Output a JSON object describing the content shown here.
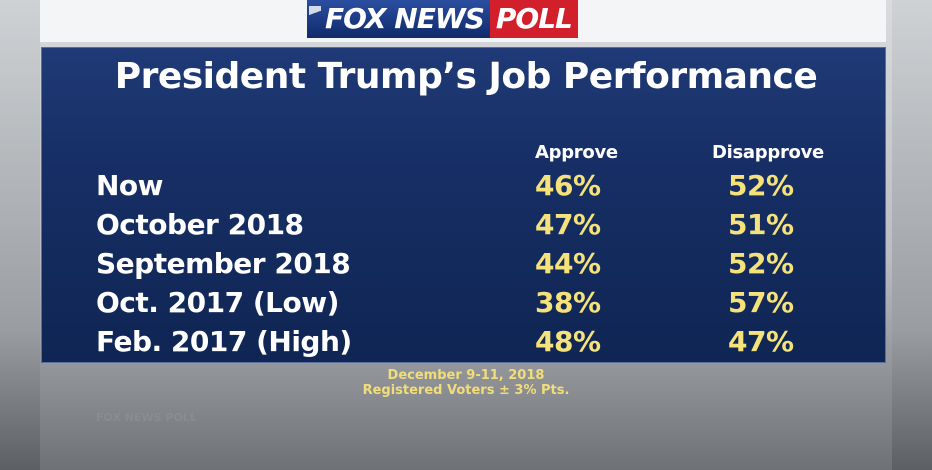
{
  "header": {
    "logo_fox": "FOX NEWS",
    "logo_poll": "POLL"
  },
  "chart_data": {
    "type": "table",
    "title": "President Trump’s Job Performance",
    "columns": [
      "Approve",
      "Disapprove"
    ],
    "rows": [
      {
        "label": "Now",
        "approve": "46%",
        "disapprove": "52%"
      },
      {
        "label": "October 2018",
        "approve": "47%",
        "disapprove": "51%"
      },
      {
        "label": "September 2018",
        "approve": "44%",
        "disapprove": "52%"
      },
      {
        "label": "Oct. 2017 (Low)",
        "approve": "38%",
        "disapprove": "57%"
      },
      {
        "label": "Feb. 2017 (High)",
        "approve": "48%",
        "disapprove": "47%"
      }
    ],
    "footnotes": [
      "December 9-11, 2018",
      "Registered Voters ± 3% Pts."
    ]
  },
  "watermark": "FOX NEWS POLL",
  "colors": {
    "board": "#172f66",
    "value_text": "#f6e27a",
    "poll_red": "#d11f2b"
  }
}
